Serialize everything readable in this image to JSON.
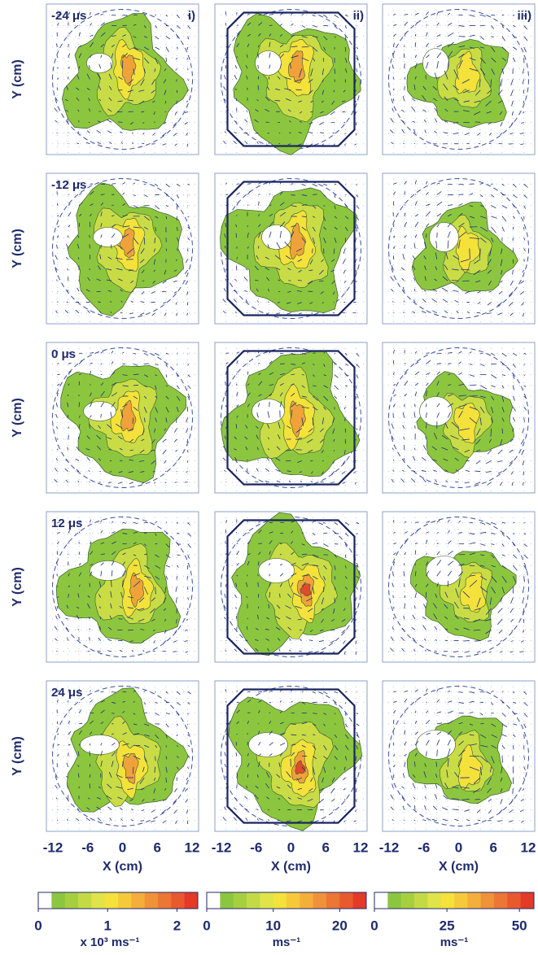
{
  "figure": {
    "panel_columns": [
      "i)",
      "ii)",
      "iii)"
    ],
    "time_labels": [
      "-24 μs",
      "-12 μs",
      "0 μs",
      "12 μs",
      "24 μs"
    ],
    "y_axis_label": "Y (cm)",
    "x_axis": {
      "label": "X (cm)",
      "ticks": [
        -12,
        -6,
        0,
        6,
        12
      ]
    },
    "colorbars": [
      {
        "range": [
          0,
          2.3
        ],
        "ticks": [
          0,
          1,
          2
        ],
        "unit": "x 10³ ms⁻¹"
      },
      {
        "range": [
          0,
          24
        ],
        "ticks": [
          0,
          10,
          20
        ],
        "unit": "ms⁻¹"
      },
      {
        "range": [
          0,
          55
        ],
        "ticks": [
          0,
          25,
          50
        ],
        "unit": "ms⁻¹"
      }
    ]
  }
}
